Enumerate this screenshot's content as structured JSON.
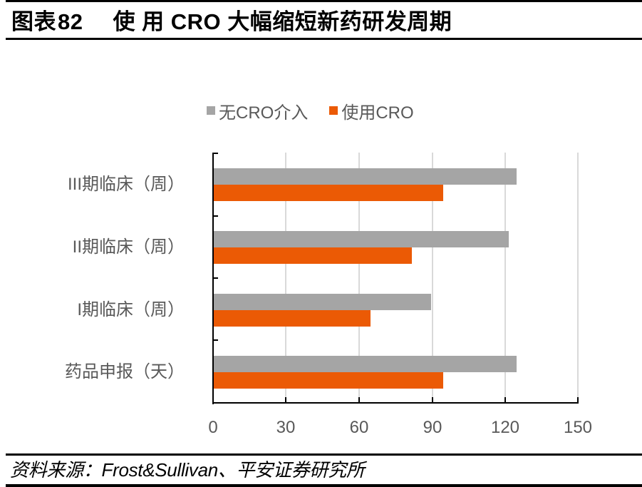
{
  "header": {
    "figure_label": "图表",
    "figure_number": "82",
    "title": "使 用 CRO 大幅缩短新药研发周期"
  },
  "footer": {
    "source": "资料来源：Frost&Sullivan、平安证券研究所"
  },
  "colors": {
    "no_cro": "#A5A5A5",
    "with_cro": "#EB5A05",
    "gridline": "#D9D9D9",
    "axis": "#000000",
    "label_text": "#595959"
  },
  "chart_data": {
    "type": "bar",
    "orientation": "horizontal",
    "title": "使用CRO大幅缩短新药研发周期",
    "categories": [
      "III期临床（周）",
      "II期临床（周）",
      "I期临床（周）",
      "药品申报（天）"
    ],
    "series": [
      {
        "name": "无CRO介入",
        "color": "#A5A5A5",
        "values": [
          125,
          122,
          90,
          125
        ]
      },
      {
        "name": "使用CRO",
        "color": "#EB5A05",
        "values": [
          95,
          82,
          65,
          95
        ]
      }
    ],
    "xlabel": "",
    "ylabel": "",
    "xlim": [
      0,
      150
    ],
    "xticks": [
      0,
      30,
      60,
      90,
      120,
      150
    ],
    "xtick_labels": [
      "0",
      "30",
      "60",
      "90",
      "120",
      "150"
    ],
    "grid": "vertical",
    "legend_position": "top"
  }
}
